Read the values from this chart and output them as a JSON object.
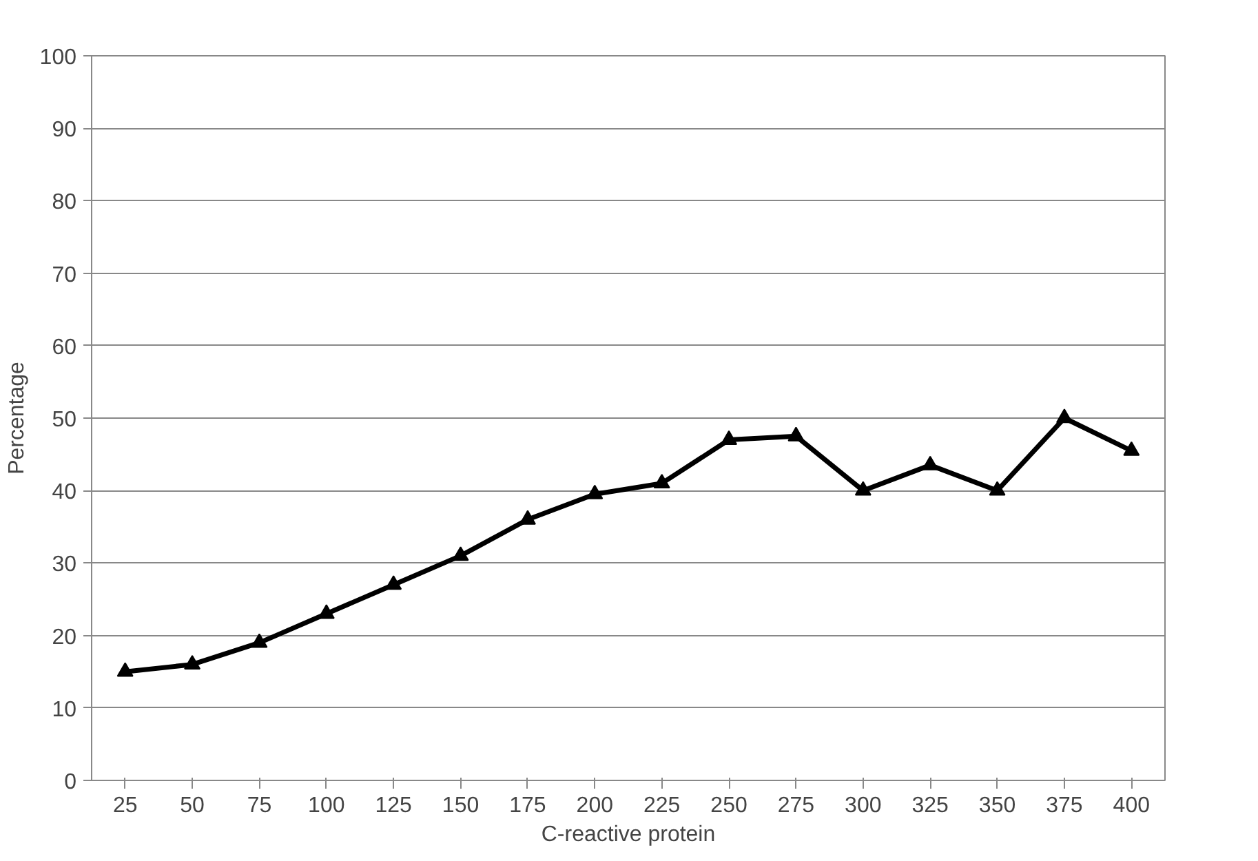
{
  "chart_data": {
    "type": "line",
    "xlabel": "C-reactive protein",
    "ylabel": "Percentage",
    "categories": [
      "25",
      "50",
      "75",
      "100",
      "125",
      "150",
      "175",
      "200",
      "225",
      "250",
      "275",
      "300",
      "325",
      "350",
      "375",
      "400"
    ],
    "series": [
      {
        "color": "#000000",
        "values": [
          15,
          16,
          19,
          23,
          27,
          31,
          36,
          39.5,
          41,
          47,
          47.5,
          40,
          43.5,
          40,
          50,
          45.5
        ]
      }
    ],
    "ylim": [
      0,
      100
    ],
    "yticks": [
      0,
      10,
      20,
      30,
      40,
      50,
      60,
      70,
      80,
      90,
      100
    ],
    "grid": "y",
    "marker": "triangle",
    "line_style": "solid"
  }
}
